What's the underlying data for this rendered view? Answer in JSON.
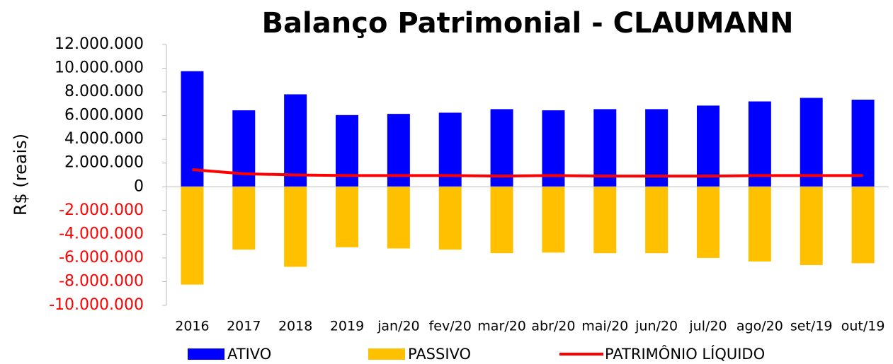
{
  "chart_data": {
    "type": "bar",
    "title": "Balanço Patrimonial - CLAUMANN",
    "y_label": "R$ (reais)",
    "categories": [
      "2016",
      "2017",
      "2018",
      "2019",
      "jan/20",
      "fev/20",
      "mar/20",
      "abr/20",
      "mai/20",
      "jun/20",
      "jul/20",
      "ago/20",
      "set/19",
      "out/19"
    ],
    "series": [
      {
        "name": "ATIVO",
        "type": "bar",
        "color": "#0000ff",
        "values": [
          9750000,
          6450000,
          7800000,
          6050000,
          6150000,
          6250000,
          6550000,
          6450000,
          6550000,
          6550000,
          6850000,
          7200000,
          7500000,
          7350000
        ]
      },
      {
        "name": "PASSIVO",
        "type": "bar",
        "color": "#ffc000",
        "values": [
          -8250000,
          -5300000,
          -6750000,
          -5100000,
          -5200000,
          -5300000,
          -5600000,
          -5550000,
          -5600000,
          -5600000,
          -6000000,
          -6300000,
          -6600000,
          -6450000
        ]
      },
      {
        "name": "PATRIMÔNIO LÍQUIDO",
        "type": "line",
        "color": "#ff0000",
        "values": [
          1450000,
          1100000,
          1000000,
          950000,
          950000,
          950000,
          900000,
          950000,
          900000,
          900000,
          900000,
          950000,
          950000,
          950000
        ]
      }
    ],
    "ylim": [
      -10000000,
      12000000
    ],
    "yticks": [
      {
        "value": -10000000,
        "label": "-10.000.000"
      },
      {
        "value": -8000000,
        "label": "-8.000.000"
      },
      {
        "value": -6000000,
        "label": "-6.000.000"
      },
      {
        "value": -4000000,
        "label": "-4.000.000"
      },
      {
        "value": -2000000,
        "label": "-2.000.000"
      },
      0,
      {
        "value": 2000000,
        "label": "2.000.000"
      },
      {
        "value": 4000000,
        "label": "4.000.000"
      },
      {
        "value": 6000000,
        "label": "6.000.000"
      },
      {
        "value": 8000000,
        "label": "8.000.000"
      },
      {
        "value": 10000000,
        "label": "10.000.000"
      },
      {
        "value": 12000000,
        "label": "12.000.000"
      }
    ],
    "negative_tick_color": "#ff0000",
    "legend": "bottom"
  }
}
